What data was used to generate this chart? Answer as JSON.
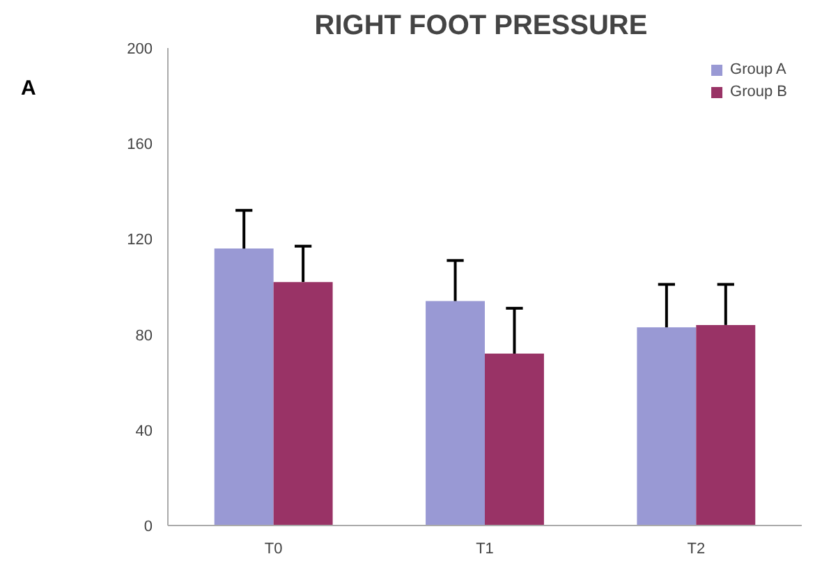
{
  "chart_data": {
    "type": "bar",
    "title": "RIGHT FOOT  PRESSURE",
    "annotations": [
      "A"
    ],
    "categories": [
      "T0",
      "T1",
      "T2"
    ],
    "series": [
      {
        "name": "Group A",
        "color": "#9999d4",
        "values": [
          116,
          94,
          83
        ],
        "errors": [
          [
            116,
            132
          ],
          [
            94,
            111
          ],
          [
            83,
            101
          ]
        ]
      },
      {
        "name": "Group B",
        "color": "#993366",
        "values": [
          102,
          72,
          84
        ],
        "errors": [
          [
            102,
            117
          ],
          [
            72,
            91
          ],
          [
            84,
            101
          ]
        ]
      }
    ],
    "ylim": [
      0,
      200
    ],
    "yticks": [
      0,
      40,
      80,
      120,
      160,
      200
    ],
    "grid": false,
    "legend": "top right"
  }
}
